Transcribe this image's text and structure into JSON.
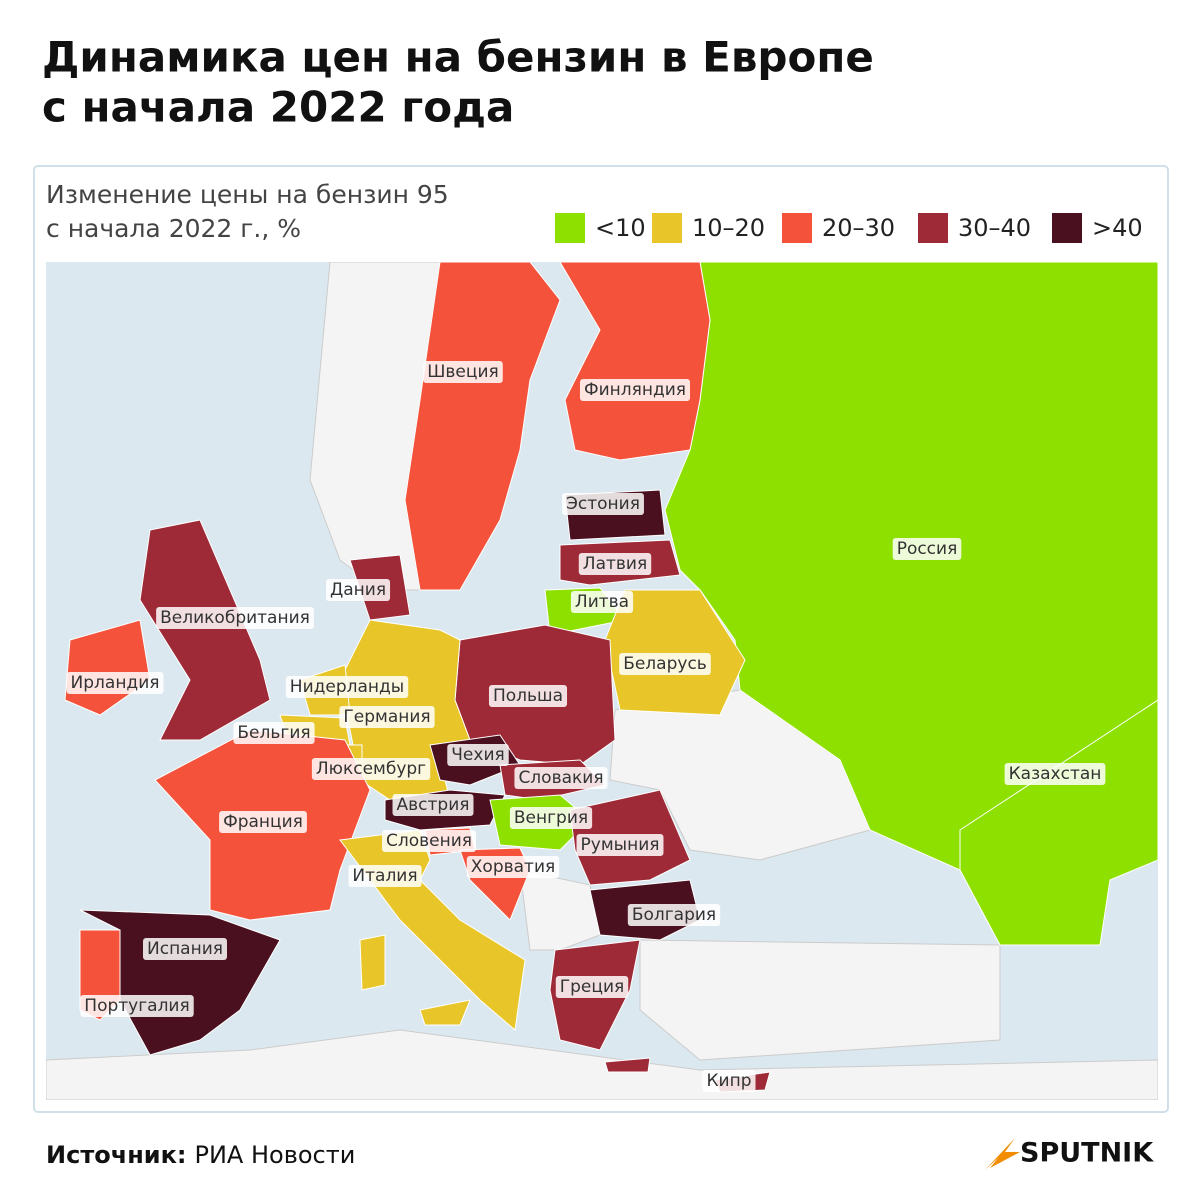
{
  "header": {
    "title_line1": "Динамика цен на бензин в Европе",
    "title_line2": "с начала 2022 года"
  },
  "map": {
    "subtitle_line1": "Изменение цены на бензин 95",
    "subtitle_line2": "с начала 2022 г., %",
    "legend": [
      {
        "label": "<10",
        "color": "#8ee000"
      },
      {
        "label": "10–20",
        "color": "#e8c62a"
      },
      {
        "label": "20–30",
        "color": "#f4523a"
      },
      {
        "label": "30–40",
        "color": "#9e2a37"
      },
      {
        "label": ">40",
        "color": "#4a1020"
      }
    ],
    "countries": [
      {
        "name": "Россия",
        "color": "#8ee000"
      },
      {
        "name": "Казахстан",
        "color": "#8ee000"
      },
      {
        "name": "Финляндия",
        "color": "#f4523a"
      },
      {
        "name": "Швеция",
        "color": "#f4523a"
      },
      {
        "name": "Эстония",
        "color": "#4a1020"
      },
      {
        "name": "Латвия",
        "color": "#9e2a37"
      },
      {
        "name": "Литва",
        "color": "#8ee000"
      },
      {
        "name": "Беларусь",
        "color": "#e8c62a"
      },
      {
        "name": "Польша",
        "color": "#9e2a37"
      },
      {
        "name": "Германия",
        "color": "#e8c62a"
      },
      {
        "name": "Дания",
        "color": "#9e2a37"
      },
      {
        "name": "Нидерланды",
        "color": "#e8c62a"
      },
      {
        "name": "Бельгия",
        "color": "#e8c62a"
      },
      {
        "name": "Люксембург",
        "color": "#e8c62a"
      },
      {
        "name": "Франция",
        "color": "#f4523a"
      },
      {
        "name": "Великобритания",
        "color": "#9e2a37"
      },
      {
        "name": "Ирландия",
        "color": "#f4523a"
      },
      {
        "name": "Чехия",
        "color": "#4a1020"
      },
      {
        "name": "Словакия",
        "color": "#9e2a37"
      },
      {
        "name": "Австрия",
        "color": "#4a1020"
      },
      {
        "name": "Венгрия",
        "color": "#8ee000"
      },
      {
        "name": "Словения",
        "color": "#f4523a"
      },
      {
        "name": "Хорватия",
        "color": "#f4523a"
      },
      {
        "name": "Италия",
        "color": "#e8c62a"
      },
      {
        "name": "Румыния",
        "color": "#9e2a37"
      },
      {
        "name": "Болгария",
        "color": "#4a1020"
      },
      {
        "name": "Греция",
        "color": "#9e2a37"
      },
      {
        "name": "Кипр",
        "color": "#9e2a37"
      },
      {
        "name": "Испания",
        "color": "#4a1020"
      },
      {
        "name": "Португалия",
        "color": "#f4523a"
      }
    ]
  },
  "footer": {
    "source_label": "Источник:",
    "source_text": "РИА Новости",
    "logo": "SPUTNIK"
  }
}
